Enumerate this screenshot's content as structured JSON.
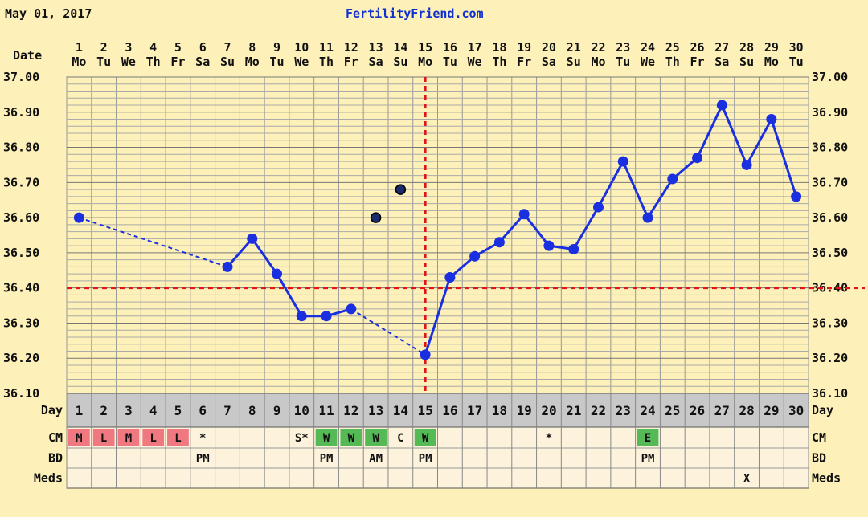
{
  "header": {
    "date": "May 01, 2017",
    "site": "FertilityFriend.com"
  },
  "labels": {
    "date_row": "Date",
    "day_row": "Day",
    "cm_row": "CM",
    "bd_row": "BD",
    "meds_row": "Meds"
  },
  "colors": {
    "line": "#1a2fe0",
    "grid": "#999999",
    "coverline": "#e01515",
    "cm_menstrual": "#f07880",
    "cm_watery": "#55b955",
    "cm_eggwhite": "#55b955"
  },
  "chart_data": {
    "type": "line",
    "ylim": [
      36.1,
      37.0
    ],
    "y_ticks": [
      "36.10",
      "36.20",
      "36.30",
      "36.40",
      "36.50",
      "36.60",
      "36.70",
      "36.80",
      "36.90",
      "37.00"
    ],
    "coverline": 36.4,
    "ovulation_day": 15,
    "days": [
      1,
      2,
      3,
      4,
      5,
      6,
      7,
      8,
      9,
      10,
      11,
      12,
      13,
      14,
      15,
      16,
      17,
      18,
      19,
      20,
      21,
      22,
      23,
      24,
      25,
      26,
      27,
      28,
      29,
      30
    ],
    "weekdays": [
      "Mo",
      "Tu",
      "We",
      "Th",
      "Fr",
      "Sa",
      "Su",
      "Mo",
      "Tu",
      "We",
      "Th",
      "Fr",
      "Sa",
      "Su",
      "Mo",
      "Tu",
      "We",
      "Th",
      "Fr",
      "Sa",
      "Su",
      "Mo",
      "Tu",
      "We",
      "Th",
      "Fr",
      "Sa",
      "Su",
      "Mo",
      "Tu"
    ],
    "temps": [
      36.6,
      null,
      null,
      null,
      null,
      null,
      36.46,
      36.54,
      36.44,
      36.32,
      36.32,
      36.34,
      null,
      null,
      36.21,
      36.43,
      36.49,
      36.53,
      36.61,
      36.52,
      36.51,
      36.63,
      36.76,
      36.6,
      36.71,
      36.77,
      36.92,
      36.75,
      36.88,
      36.66
    ],
    "discarded": [
      {
        "day": 13,
        "temp": 36.6
      },
      {
        "day": 14,
        "temp": 36.68
      }
    ],
    "cm": [
      "M",
      "L",
      "M",
      "L",
      "L",
      "*",
      "",
      "",
      "",
      "S*",
      "W",
      "W",
      "W",
      "C",
      "W",
      "",
      "",
      "",
      "",
      "*",
      "",
      "",
      "",
      "E",
      "",
      "",
      "",
      "",
      "",
      ""
    ],
    "bd": [
      "",
      "",
      "",
      "",
      "",
      "PM",
      "",
      "",
      "",
      "",
      "PM",
      "",
      "AM",
      "",
      "PM",
      "",
      "",
      "",
      "",
      "",
      "",
      "",
      "",
      "PM",
      "",
      "",
      "",
      "",
      "",
      ""
    ],
    "meds": [
      "",
      "",
      "",
      "",
      "",
      "",
      "",
      "",
      "",
      "",
      "",
      "",
      "",
      "",
      "",
      "",
      "",
      "",
      "",
      "",
      "",
      "",
      "",
      "",
      "",
      "",
      "",
      "X",
      "",
      ""
    ]
  }
}
